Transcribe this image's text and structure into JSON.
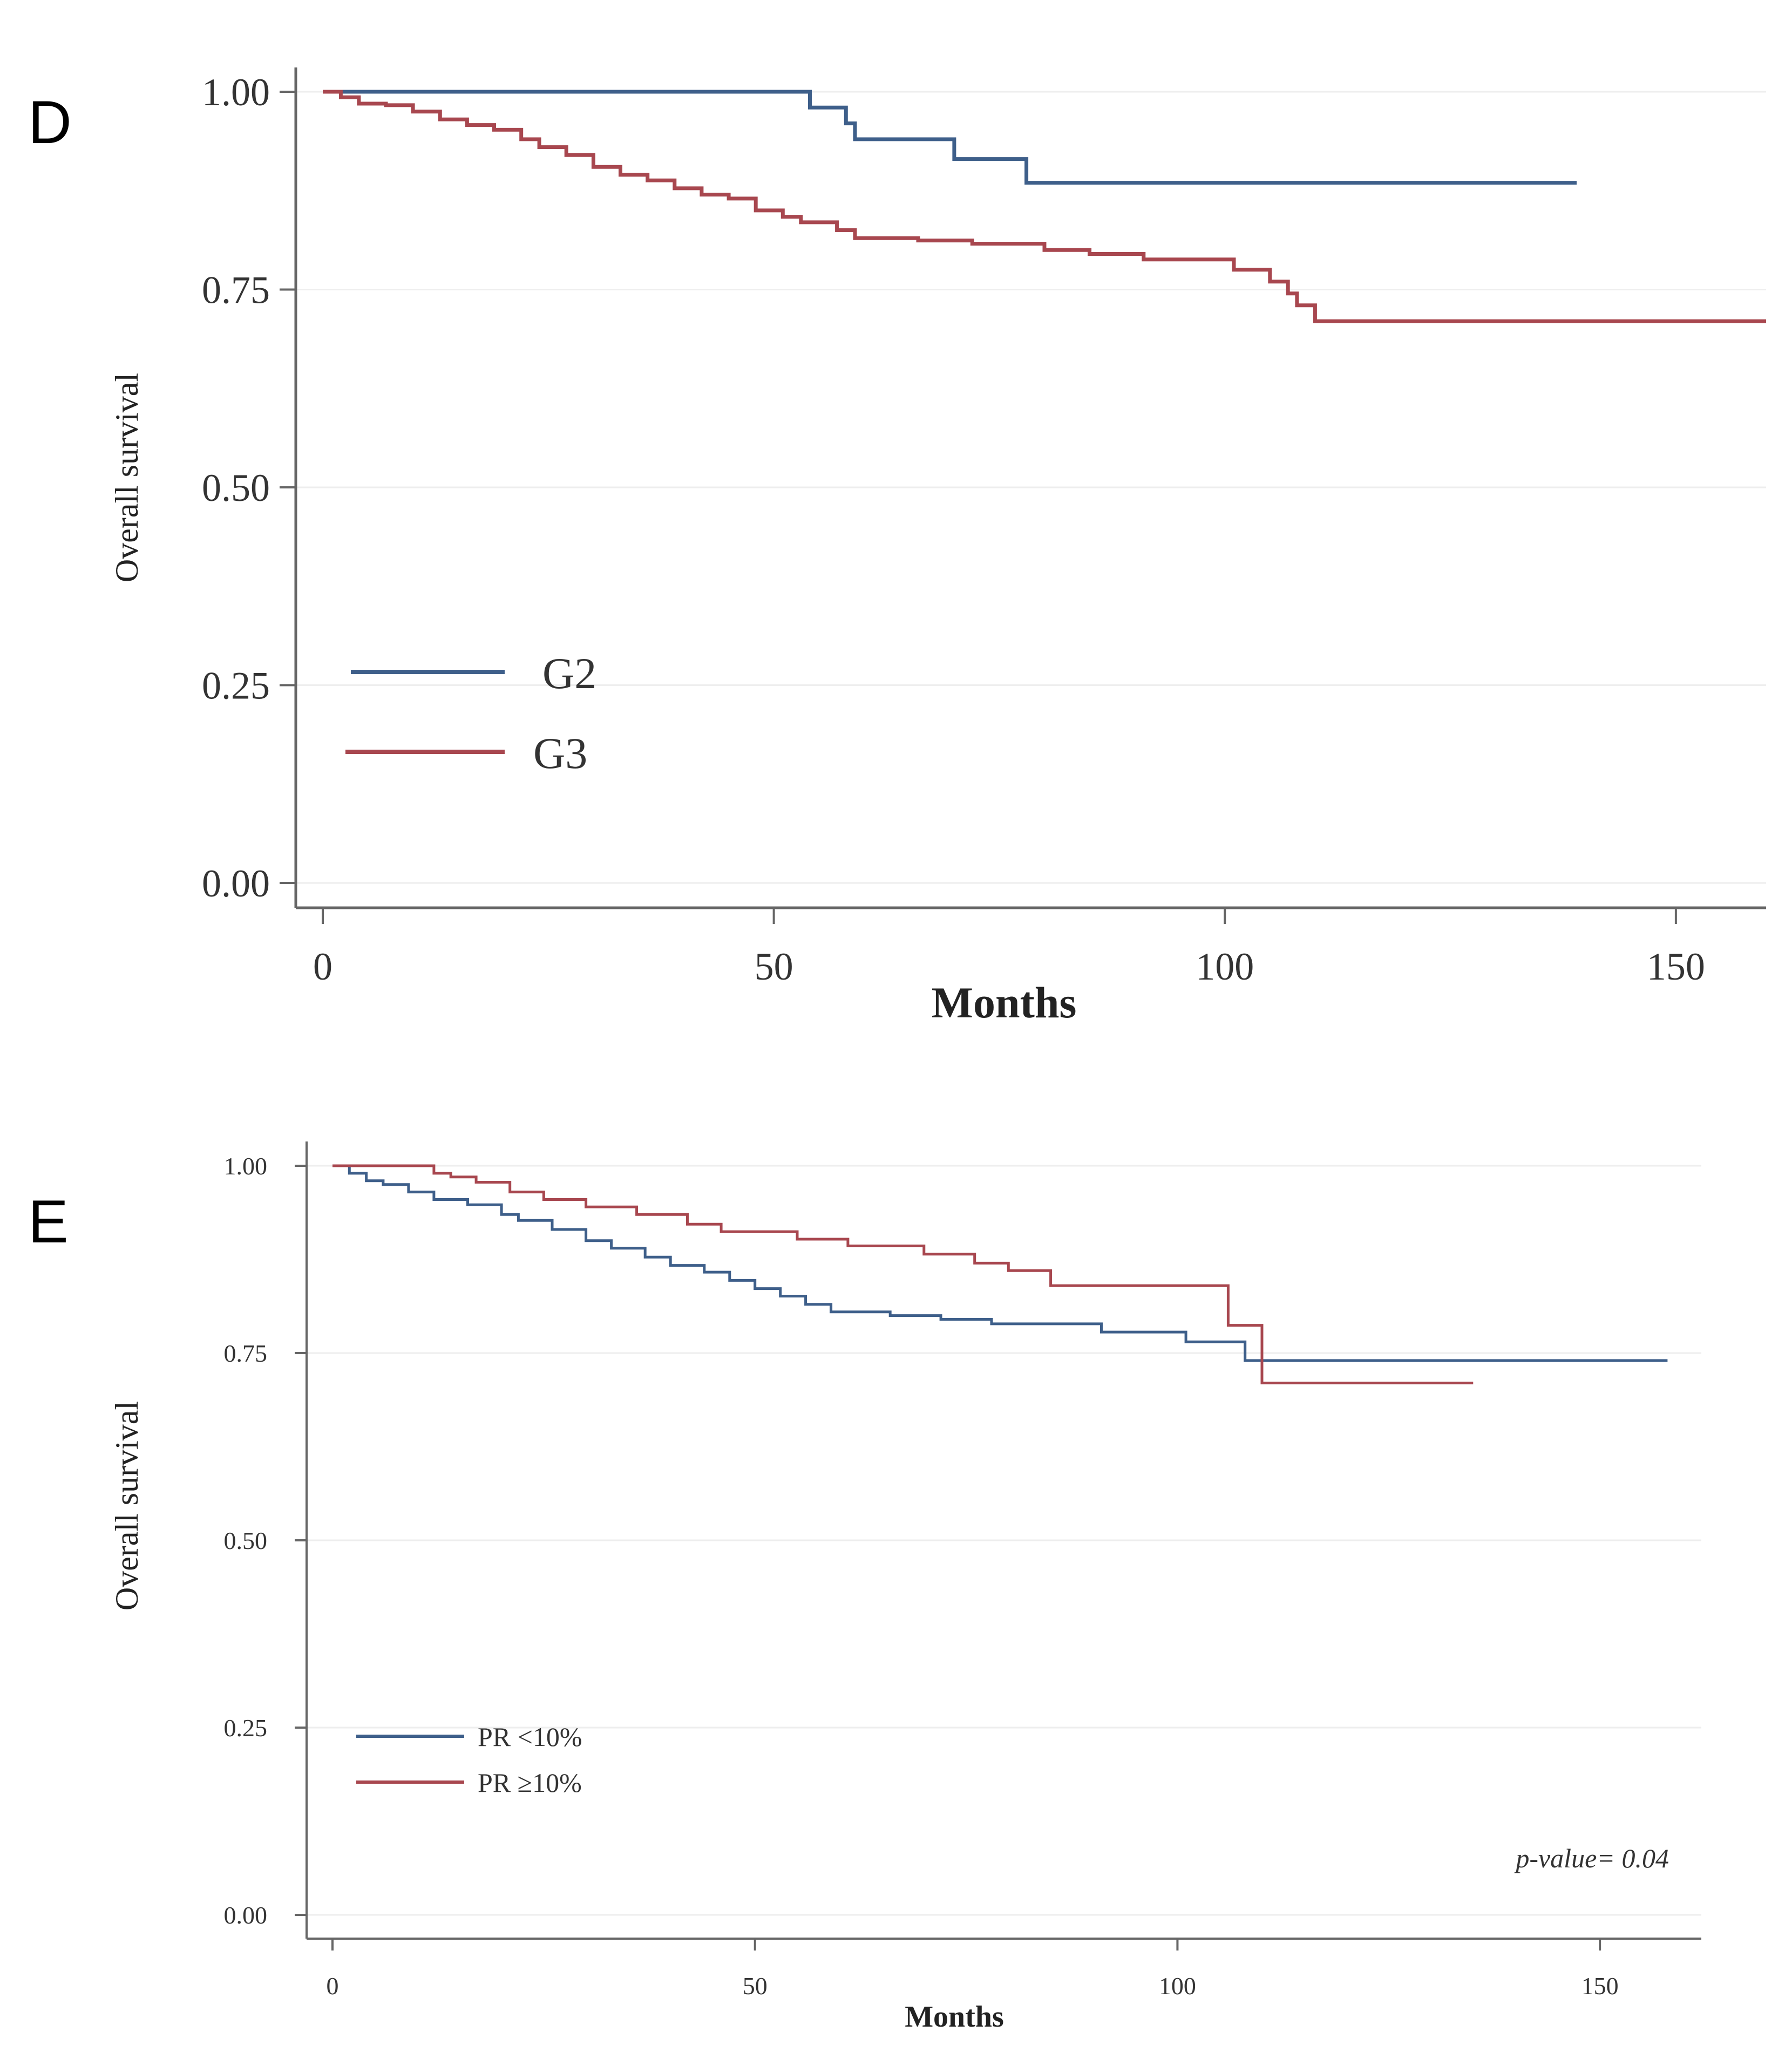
{
  "chart_data": [
    {
      "panel": "D",
      "type": "line",
      "step": true,
      "title": "",
      "xlabel": "Months",
      "ylabel": "Overall survival",
      "xlim": [
        0,
        160
      ],
      "ylim": [
        0,
        1
      ],
      "x_ticks": [
        "0",
        "50",
        "100",
        "150"
      ],
      "y_ticks": [
        "0.00",
        "0.25",
        "0.50",
        "0.75",
        "1.00"
      ],
      "grid": true,
      "legend_position": "bottom-left",
      "series": [
        {
          "name": "G2",
          "color": "#3e5f8a",
          "x": [
            0,
            54,
            58,
            59,
            70,
            78,
            139
          ],
          "y": [
            1.0,
            0.98,
            0.96,
            0.94,
            0.915,
            0.885,
            0.885
          ]
        },
        {
          "name": "G3",
          "color": "#a8474f",
          "x": [
            0,
            2,
            4,
            7,
            10,
            13,
            16,
            19,
            22,
            24,
            27,
            30,
            33,
            36,
            39,
            42,
            45,
            48,
            51,
            53,
            57,
            59,
            66,
            72,
            80,
            85,
            91,
            101,
            105,
            107,
            108,
            110,
            160
          ],
          "y": [
            1.0,
            0.993,
            0.985,
            0.983,
            0.975,
            0.965,
            0.958,
            0.952,
            0.94,
            0.93,
            0.92,
            0.905,
            0.895,
            0.888,
            0.878,
            0.87,
            0.865,
            0.85,
            0.842,
            0.835,
            0.825,
            0.815,
            0.812,
            0.808,
            0.8,
            0.795,
            0.788,
            0.775,
            0.76,
            0.745,
            0.73,
            0.71,
            0.71
          ]
        }
      ]
    },
    {
      "panel": "E",
      "type": "line",
      "step": true,
      "title": "",
      "xlabel": "Months",
      "ylabel": "Overall survival",
      "xlim": [
        0,
        162
      ],
      "ylim": [
        0,
        1
      ],
      "x_ticks": [
        "0",
        "50",
        "100",
        "150"
      ],
      "y_ticks": [
        "0.00",
        "0.25",
        "0.50",
        "0.75",
        "1.00"
      ],
      "grid": true,
      "legend_position": "bottom-left",
      "annotation": "p-value= 0.04",
      "series": [
        {
          "name": "PR <10%",
          "color": "#3e5f8a",
          "x": [
            0,
            2,
            4,
            6,
            9,
            12,
            16,
            20,
            22,
            26,
            30,
            33,
            37,
            40,
            44,
            47,
            50,
            53,
            56,
            59,
            66,
            72,
            78,
            91,
            101,
            108,
            158
          ],
          "y": [
            1.0,
            0.99,
            0.98,
            0.975,
            0.965,
            0.955,
            0.948,
            0.935,
            0.927,
            0.915,
            0.9,
            0.89,
            0.878,
            0.867,
            0.858,
            0.847,
            0.836,
            0.826,
            0.815,
            0.805,
            0.8,
            0.795,
            0.789,
            0.778,
            0.765,
            0.74,
            0.74
          ]
        },
        {
          "name": "PR ≥10%",
          "color": "#a8474f",
          "x": [
            0,
            12,
            14,
            17,
            21,
            25,
            30,
            36,
            42,
            46,
            55,
            61,
            70,
            76,
            80,
            85,
            106,
            110,
            135
          ],
          "y": [
            1.0,
            0.99,
            0.985,
            0.978,
            0.965,
            0.955,
            0.945,
            0.935,
            0.922,
            0.912,
            0.902,
            0.893,
            0.882,
            0.87,
            0.86,
            0.84,
            0.787,
            0.71,
            0.71
          ]
        }
      ]
    }
  ]
}
